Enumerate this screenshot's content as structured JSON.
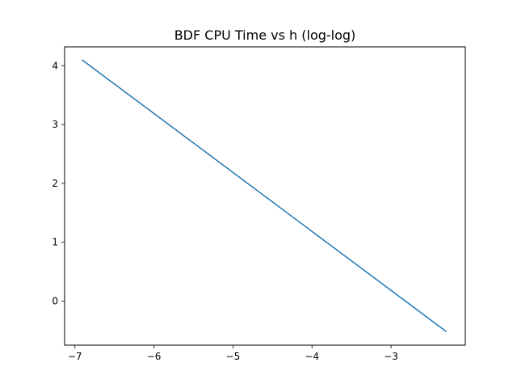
{
  "chart_data": {
    "type": "line",
    "title": "BDF CPU Time vs h (log-log)",
    "xlabel": "",
    "ylabel": "",
    "xlim": [
      -7.13,
      -2.06
    ],
    "ylim": [
      -0.75,
      4.32
    ],
    "xticks": [
      -7,
      -6,
      -5,
      -4,
      -3
    ],
    "yticks": [
      0,
      1,
      2,
      3,
      4
    ],
    "grid": false,
    "series": [
      {
        "color": "#1f77b4",
        "x": [
          -6.91,
          -2.3
        ],
        "y": [
          4.1,
          -0.52
        ]
      }
    ]
  }
}
